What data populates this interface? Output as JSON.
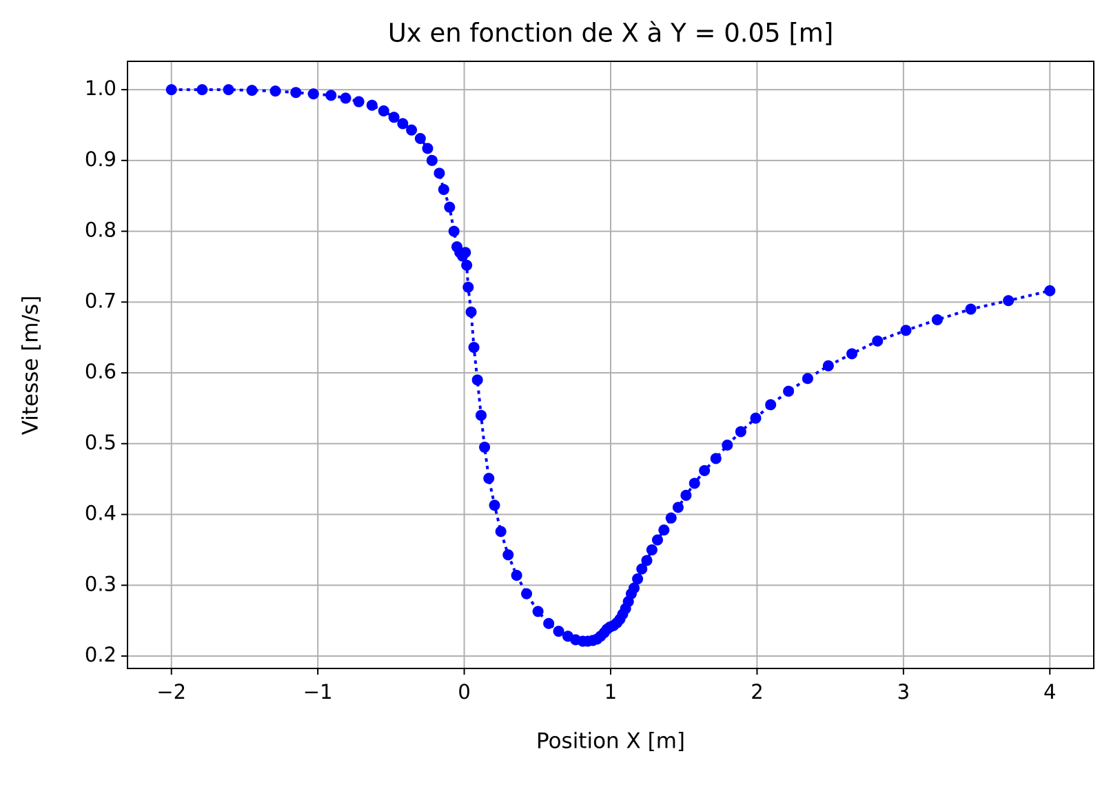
{
  "chart_data": {
    "type": "line",
    "title": "Ux en fonction de X à Y = 0.05 [m]",
    "x_label": "Position X [m]",
    "y_label": "Vitesse [m/s]",
    "xlim": [
      -2.3,
      4.3
    ],
    "ylim": [
      0.1825,
      1.04
    ],
    "xticks": [
      {
        "value": -2,
        "label": "−2"
      },
      {
        "value": -1,
        "label": "−1"
      },
      0,
      1,
      2,
      3,
      4
    ],
    "yticks": [
      0.2,
      0.3,
      0.4,
      0.5,
      0.6,
      0.7,
      0.8,
      0.9,
      {
        "value": 1,
        "label": "1.0"
      }
    ],
    "grid": true,
    "series": [
      {
        "name": "Ux",
        "color": "#0000ff",
        "x": [
          -2,
          -1.79,
          -1.61,
          -1.45,
          -1.29,
          -1.15,
          -1.03,
          -0.91,
          -0.81,
          -0.72,
          -0.63,
          -0.55,
          -0.48,
          -0.42,
          -0.36,
          -0.3,
          -0.25,
          -0.22,
          -0.17,
          -0.14,
          -0.1,
          -0.07,
          -0.05,
          -0.03,
          -0.012,
          0.008,
          0.017,
          0.027,
          0.047,
          0.066,
          0.09,
          0.115,
          0.139,
          0.168,
          0.207,
          0.25,
          0.3,
          0.358,
          0.426,
          0.504,
          0.577,
          0.645,
          0.708,
          0.761,
          0.81,
          0.844,
          0.878,
          0.907,
          0.931,
          0.956,
          0.975,
          0.995,
          1.019,
          1.043,
          1.063,
          1.082,
          1.102,
          1.121,
          1.141,
          1.16,
          1.184,
          1.213,
          1.247,
          1.282,
          1.32,
          1.364,
          1.413,
          1.461,
          1.515,
          1.573,
          1.641,
          1.719,
          1.797,
          1.889,
          1.991,
          2.093,
          2.215,
          2.346,
          2.487,
          2.648,
          2.823,
          3.017,
          3.231,
          3.46,
          3.717,
          4.0
        ],
        "values": [
          1.0,
          1.0,
          1.0,
          0.999,
          0.998,
          0.996,
          0.994,
          0.992,
          0.988,
          0.983,
          0.978,
          0.97,
          0.961,
          0.952,
          0.943,
          0.931,
          0.917,
          0.9,
          0.882,
          0.859,
          0.834,
          0.8,
          0.778,
          0.77,
          0.765,
          0.77,
          0.752,
          0.721,
          0.686,
          0.636,
          0.59,
          0.54,
          0.495,
          0.451,
          0.413,
          0.376,
          0.343,
          0.314,
          0.288,
          0.263,
          0.246,
          0.235,
          0.228,
          0.223,
          0.221,
          0.221,
          0.222,
          0.224,
          0.228,
          0.233,
          0.238,
          0.241,
          0.243,
          0.247,
          0.252,
          0.259,
          0.267,
          0.277,
          0.288,
          0.296,
          0.309,
          0.323,
          0.335,
          0.35,
          0.364,
          0.378,
          0.395,
          0.41,
          0.427,
          0.444,
          0.462,
          0.479,
          0.498,
          0.517,
          0.536,
          0.555,
          0.574,
          0.592,
          0.61,
          0.627,
          0.645,
          0.66,
          0.675,
          0.69,
          0.702,
          0.716
        ]
      }
    ]
  }
}
